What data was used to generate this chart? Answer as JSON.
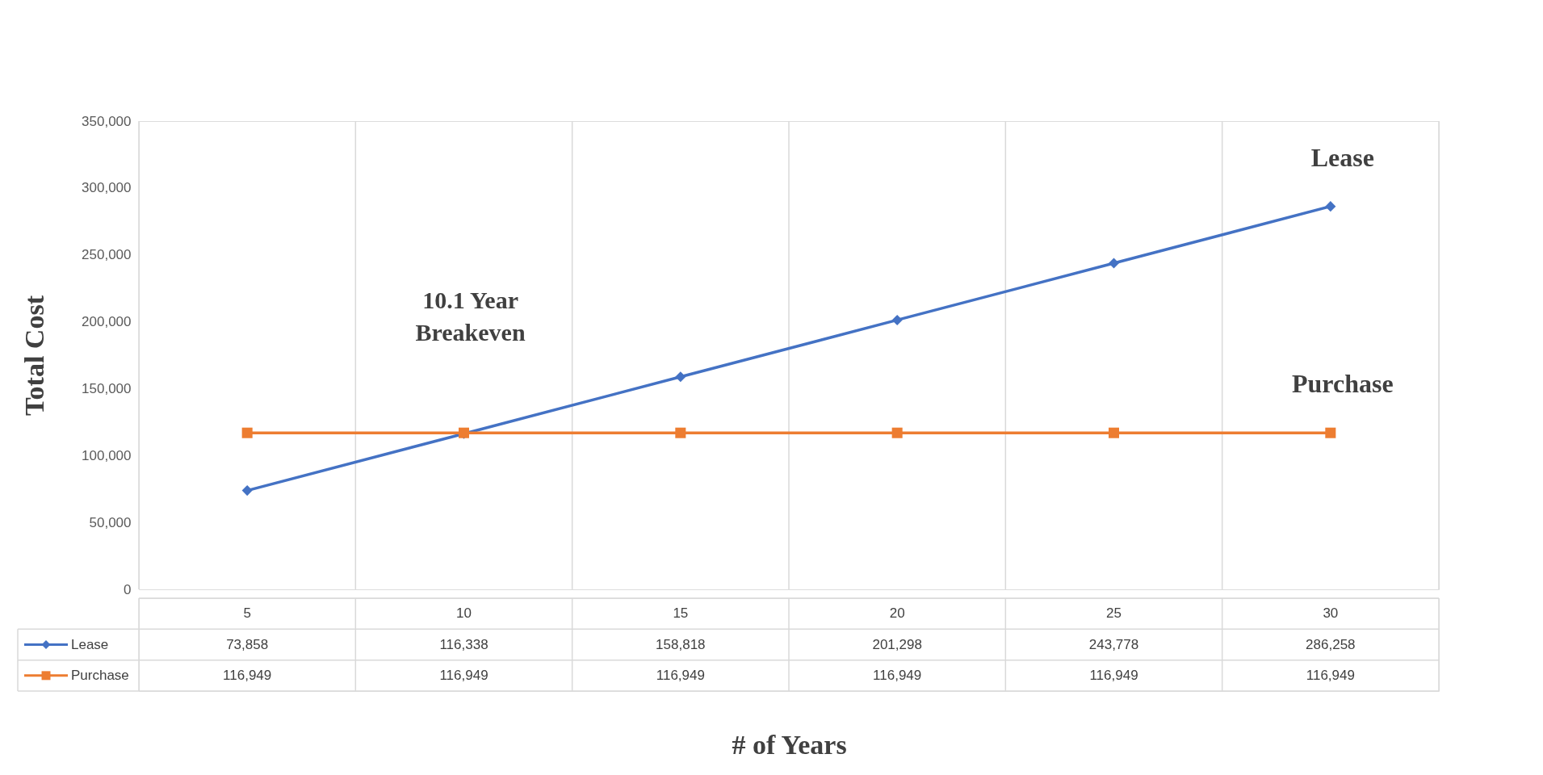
{
  "chart_data": {
    "type": "line",
    "xlabel": "# of Years",
    "ylabel": "Total Cost",
    "categories": [
      "5",
      "10",
      "15",
      "20",
      "25",
      "30"
    ],
    "series": [
      {
        "name": "Lease",
        "color": "#4472c4",
        "marker": "diamond",
        "values": [
          73858,
          116338,
          158818,
          201298,
          243778,
          286258
        ],
        "value_labels": [
          "73,858",
          "116,338",
          "158,818",
          "201,298",
          "243,778",
          "286,258"
        ]
      },
      {
        "name": "Purchase",
        "color": "#ed7d31",
        "marker": "square",
        "values": [
          116949,
          116949,
          116949,
          116949,
          116949,
          116949
        ],
        "value_labels": [
          "116,949",
          "116,949",
          "116,949",
          "116,949",
          "116,949",
          "116,949"
        ]
      }
    ],
    "ylim": [
      0,
      350000
    ],
    "yticks": [
      0,
      {
        "value": 50000,
        "label": "50,000"
      },
      {
        "value": 100000,
        "label": "100,000"
      },
      {
        "value": 150000,
        "label": "150,000"
      },
      {
        "value": 200000,
        "label": "200,000"
      },
      {
        "value": 250000,
        "label": "250,000"
      },
      {
        "value": 300000,
        "label": "300,000"
      },
      {
        "value": 350000,
        "label": "350,000"
      }
    ],
    "grid": "x",
    "legend": "bottom",
    "line_style": "solid",
    "annotations": [
      "10.1 Year\nBreakeven"
    ]
  }
}
